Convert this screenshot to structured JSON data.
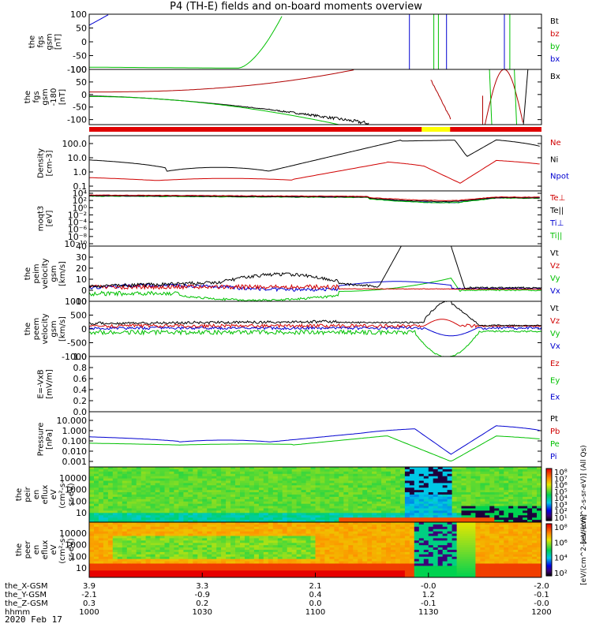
{
  "title": "P4 (TH-E) fields and on-board moments overview",
  "date": "2020 Feb 17",
  "chart_data": [
    {
      "type": "line",
      "ylabel": [
        "the",
        "fgs",
        "gsm",
        "[nT]"
      ],
      "yticks": [
        "100",
        "50",
        "0",
        "-50",
        "-100"
      ],
      "ylim": [
        -100,
        100
      ],
      "legend": [
        {
          "name": "Bt",
          "color": "#000000"
        },
        {
          "name": "bz",
          "color": "#d00000"
        },
        {
          "name": "by",
          "color": "#00c000"
        },
        {
          "name": "bx",
          "color": "#0000d0"
        }
      ]
    },
    {
      "type": "line",
      "ylabel": [
        "the",
        "fgs",
        "gsm",
        "-180",
        "[nT]"
      ],
      "yticks": [
        "100",
        "50",
        "0",
        "-50",
        "-100"
      ],
      "ylim": [
        -120,
        100
      ],
      "legend": [
        {
          "name": "Bx",
          "color": "#000000"
        }
      ]
    },
    {
      "type": "line",
      "log": true,
      "ylabel": [
        "Density",
        "[cm-3]"
      ],
      "yticks": [
        "100.0",
        "10.0",
        "1.0",
        "0.1"
      ],
      "legend": [
        {
          "name": "Ne",
          "color": "#d00000"
        },
        {
          "name": "Ni",
          "color": "#000000"
        },
        {
          "name": "Npot",
          "color": "#0000d0"
        }
      ]
    },
    {
      "type": "line",
      "log": true,
      "ylabel": [
        "moqt3",
        "[eV]"
      ],
      "yticks": [
        "10⁴",
        "10²",
        "10⁰",
        "10⁻²",
        "10⁻⁴",
        "10⁻⁶",
        "10⁻⁸",
        "10⁻¹⁰"
      ],
      "legend": [
        {
          "name": "Te⊥",
          "color": "#d00000"
        },
        {
          "name": "Te||",
          "color": "#000000"
        },
        {
          "name": "Ti⊥",
          "color": "#0000d0"
        },
        {
          "name": "Ti||",
          "color": "#00c000"
        }
      ]
    },
    {
      "type": "line",
      "ylabel": [
        "the",
        "peim",
        "velocity",
        "gsm",
        "[km/s]"
      ],
      "yticks": [
        "40",
        "30",
        "20",
        "10",
        "0",
        "-10"
      ],
      "ylim": [
        -10,
        40
      ],
      "legend": [
        {
          "name": "Vt",
          "color": "#000000"
        },
        {
          "name": "Vz",
          "color": "#d00000"
        },
        {
          "name": "Vy",
          "color": "#00c000"
        },
        {
          "name": "Vx",
          "color": "#0000d0"
        }
      ]
    },
    {
      "type": "line",
      "ylabel": [
        "the",
        "peem",
        "velocity",
        "gsm",
        "[km/s]"
      ],
      "yticks": [
        "1000",
        "500",
        "0",
        "-500",
        "-1000"
      ],
      "ylim": [
        -1000,
        1000
      ],
      "legend": [
        {
          "name": "Vt",
          "color": "#000000"
        },
        {
          "name": "Vz",
          "color": "#d00000"
        },
        {
          "name": "Vy",
          "color": "#00c000"
        },
        {
          "name": "Vx",
          "color": "#0000d0"
        }
      ]
    },
    {
      "type": "line",
      "ylabel": [
        "E=-VxB",
        "[mV/m]"
      ],
      "yticks": [
        "1.0",
        "0.8",
        "0.6",
        "0.4",
        "0.2",
        "0.0"
      ],
      "ylim": [
        0,
        1
      ],
      "legend": [
        {
          "name": "Ez",
          "color": "#d00000"
        },
        {
          "name": "Ey",
          "color": "#00c000"
        },
        {
          "name": "Ex",
          "color": "#0000d0"
        }
      ]
    },
    {
      "type": "line",
      "log": true,
      "ylabel": [
        "Pressure",
        "[nPa]"
      ],
      "yticks": [
        "10.000",
        "1.000",
        "0.100",
        "0.010",
        "0.001"
      ],
      "legend": [
        {
          "name": "Pt",
          "color": "#000000"
        },
        {
          "name": "Pb",
          "color": "#d00000"
        },
        {
          "name": "Pe",
          "color": "#00c000"
        },
        {
          "name": "Pi",
          "color": "#0000d0"
        }
      ]
    },
    {
      "type": "heatmap",
      "ylabel": [
        "the",
        "peir",
        "en",
        "eflux",
        "eV",
        "(cm²-s-",
        "sr-eV)"
      ],
      "yticks": [
        "10000",
        "1000",
        "100",
        "10"
      ]
    },
    {
      "type": "heatmap",
      "ylabel": [
        "the",
        "peer",
        "en",
        "eflux",
        "eV",
        "(cm²-s-",
        "sr-eV)"
      ],
      "yticks": [
        "10000",
        "1000",
        "100",
        "10"
      ]
    }
  ],
  "colorbar": {
    "ticks_top": [
      "10⁸",
      "10⁷",
      "10⁶",
      "10⁵",
      "10⁴",
      "10³",
      "10²",
      "10¹"
    ],
    "ticks_bottom": [
      "10⁸",
      "10⁶",
      "10⁴",
      "10²"
    ],
    "label_top": "[eV/(cm^2-s-sr-eV)] (All Qs)",
    "label_bottom": "[eV/(cm^2-s-sr-eV)]"
  },
  "xaxis": {
    "rows": [
      {
        "label": "the_X-GSM",
        "values": [
          "3.9",
          "3.3",
          "2.1",
          "-0.0",
          "-2.0"
        ]
      },
      {
        "label": "the_Y-GSM",
        "values": [
          "-2.1",
          "-0.9",
          "0.4",
          "1.2",
          "-0.1"
        ]
      },
      {
        "label": "the_Z-GSM",
        "values": [
          "0.3",
          "0.2",
          "0.0",
          "-0.1",
          "-0.0"
        ]
      },
      {
        "label": "hhmm",
        "values": [
          "1000",
          "1030",
          "1100",
          "1130",
          "1200"
        ]
      }
    ]
  }
}
